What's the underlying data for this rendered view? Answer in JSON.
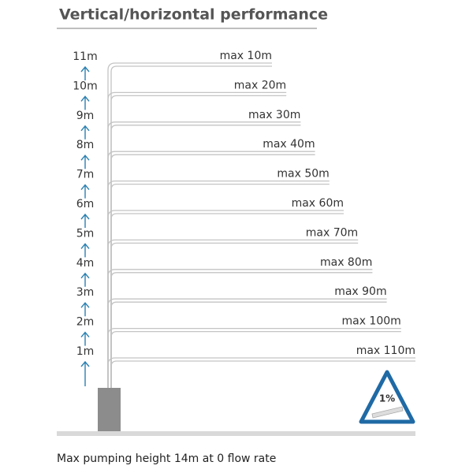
{
  "title": "Vertical/horizontal performance",
  "levels": [
    {
      "height": "11m",
      "distance": "max 10m"
    },
    {
      "height": "10m",
      "distance": "max 20m"
    },
    {
      "height": "9m",
      "distance": "max 30m"
    },
    {
      "height": "8m",
      "distance": "max 40m"
    },
    {
      "height": "7m",
      "distance": "max 50m"
    },
    {
      "height": "6m",
      "distance": "max 60m"
    },
    {
      "height": "5m",
      "distance": "max 70m"
    },
    {
      "height": "4m",
      "distance": "max 80m"
    },
    {
      "height": "3m",
      "distance": "max 90m"
    },
    {
      "height": "2m",
      "distance": "max 100m"
    },
    {
      "height": "1m",
      "distance": "max 110m"
    }
  ],
  "badge": "1%",
  "footer": "Max pumping height 14m at 0 flow rate"
}
